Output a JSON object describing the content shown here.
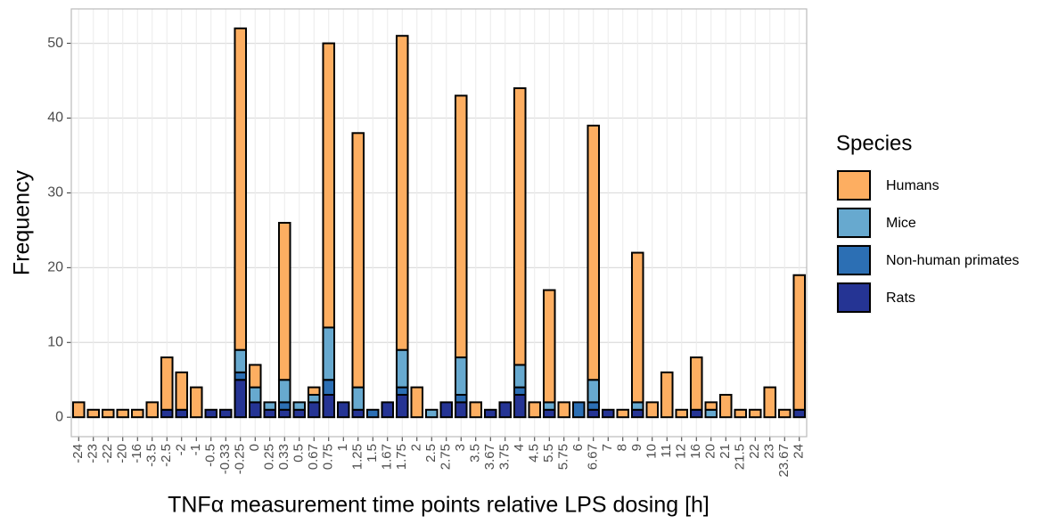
{
  "chart_data": {
    "type": "stacked_bar",
    "x_label": "TNFα measurement time points relative LPS dosing [h]",
    "y_label": "Frequency",
    "legend_title": "Species",
    "categories": [
      "-24",
      "-23",
      "-22",
      "-20",
      "-16",
      "-3.5",
      "-2.5",
      "-2",
      "-1",
      "-0.5",
      "-0.33",
      "-0.25",
      "0",
      "0.25",
      "0.33",
      "0.5",
      "0.67",
      "0.75",
      "1",
      "1.25",
      "1.5",
      "1.67",
      "1.75",
      "2",
      "2.5",
      "2.75",
      "3",
      "3.5",
      "3.67",
      "3.75",
      "4",
      "4.5",
      "5.5",
      "5.75",
      "6",
      "6.67",
      "7",
      "8",
      "9",
      "10",
      "11",
      "12",
      "16",
      "20",
      "21",
      "21.5",
      "22",
      "23",
      "23.67",
      "24"
    ],
    "series": [
      {
        "name": "Humans",
        "color": "#fdae61",
        "values": [
          2,
          1,
          1,
          1,
          1,
          2,
          7,
          5,
          4,
          0,
          0,
          43,
          3,
          0,
          21,
          0,
          1,
          38,
          0,
          34,
          0,
          0,
          42,
          4,
          0,
          0,
          35,
          2,
          0,
          0,
          37,
          2,
          15,
          2,
          0,
          34,
          0,
          1,
          20,
          2,
          6,
          1,
          7,
          1,
          3,
          1,
          1,
          4,
          1,
          18
        ]
      },
      {
        "name": "Mice",
        "color": "#67a9cf",
        "values": [
          0,
          0,
          0,
          0,
          0,
          0,
          0,
          0,
          0,
          0,
          0,
          3,
          2,
          1,
          3,
          1,
          1,
          7,
          0,
          3,
          0,
          0,
          5,
          0,
          1,
          0,
          5,
          0,
          0,
          0,
          3,
          0,
          1,
          0,
          0,
          3,
          0,
          0,
          1,
          0,
          0,
          0,
          0,
          1,
          0,
          0,
          0,
          0,
          0,
          0
        ]
      },
      {
        "name": "Non-human primates",
        "color": "#2c6fb4",
        "values": [
          0,
          0,
          0,
          0,
          0,
          0,
          0,
          0,
          0,
          0,
          0,
          1,
          0,
          0,
          1,
          0,
          0,
          2,
          0,
          0,
          1,
          0,
          1,
          0,
          0,
          0,
          1,
          0,
          0,
          0,
          1,
          0,
          0,
          0,
          2,
          1,
          0,
          0,
          0,
          0,
          0,
          0,
          0,
          0,
          0,
          0,
          0,
          0,
          0,
          0
        ]
      },
      {
        "name": "Rats",
        "color": "#253494",
        "values": [
          0,
          0,
          0,
          0,
          0,
          0,
          1,
          1,
          0,
          1,
          1,
          5,
          2,
          1,
          1,
          1,
          2,
          3,
          2,
          1,
          0,
          2,
          3,
          0,
          0,
          2,
          2,
          0,
          1,
          2,
          3,
          0,
          1,
          0,
          0,
          1,
          1,
          0,
          1,
          0,
          0,
          0,
          1,
          0,
          0,
          0,
          0,
          0,
          0,
          1
        ]
      }
    ],
    "ylim": [
      -2.6,
      54.6
    ],
    "yticks": [
      0,
      10,
      20,
      30,
      40,
      50
    ],
    "grid": true
  }
}
